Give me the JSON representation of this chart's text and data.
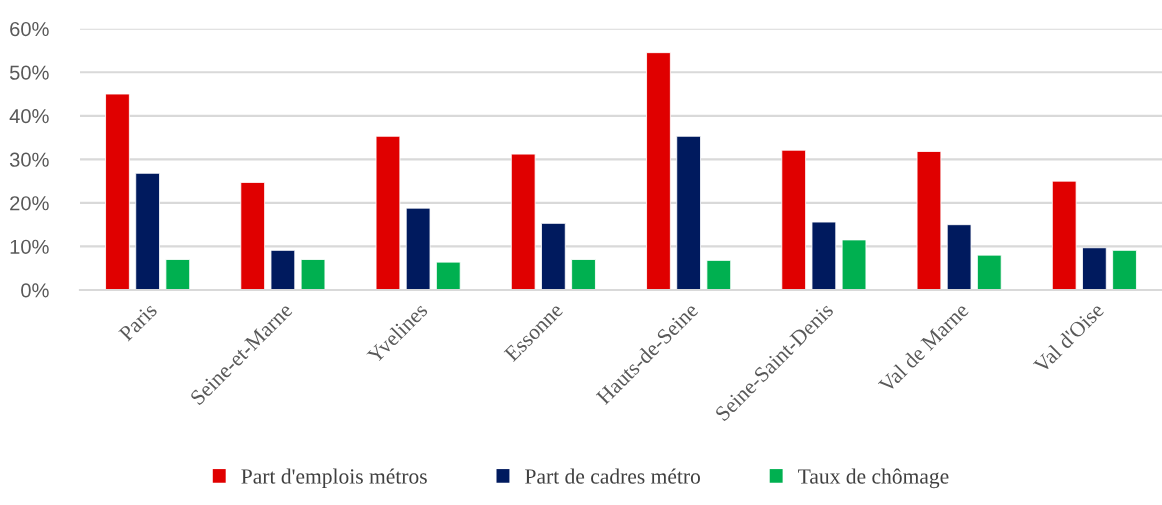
{
  "chart_data": {
    "type": "bar",
    "categories": [
      "Paris",
      "Seine-et-Marne",
      "Yvelines",
      "Essonne",
      "Hauts-de-Seine",
      "Seine-Saint-Denis",
      "Val de Marne",
      "Val d'Oise"
    ],
    "series": [
      {
        "name": "Part d'emplois métros",
        "color": "#e00000",
        "values": [
          45.0,
          24.7,
          35.3,
          31.2,
          54.5,
          32.1,
          31.8,
          25.0
        ]
      },
      {
        "name": "Part de cadres métro",
        "color": "#001a5e",
        "values": [
          26.8,
          9.1,
          18.8,
          15.3,
          35.3,
          15.6,
          15.0,
          9.7
        ]
      },
      {
        "name": "Taux de chômage",
        "color": "#00b050",
        "values": [
          7.0,
          7.0,
          6.4,
          7.0,
          6.8,
          11.5,
          8.0,
          9.1
        ]
      }
    ],
    "ylim": [
      0,
      60
    ],
    "yticks": [
      {
        "value": 0,
        "label": "0%"
      },
      {
        "value": 10,
        "label": "10%"
      },
      {
        "value": 20,
        "label": "20%"
      },
      {
        "value": 30,
        "label": "30%"
      },
      {
        "value": 40,
        "label": "40%"
      },
      {
        "value": 50,
        "label": "50%"
      },
      {
        "value": 60,
        "label": "60%"
      }
    ],
    "grid": "y",
    "legend": "bottom"
  }
}
